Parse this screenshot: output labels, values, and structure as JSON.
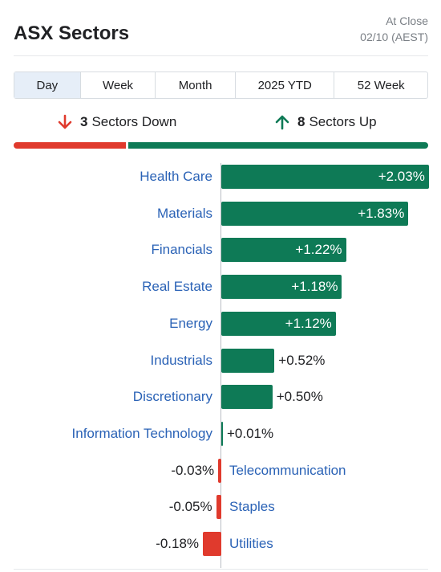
{
  "header": {
    "title": "ASX Sectors",
    "status": "At Close",
    "timestamp": "02/10 (AEST)"
  },
  "tabs": [
    {
      "label": "Day",
      "active": true
    },
    {
      "label": "Week",
      "active": false
    },
    {
      "label": "Month",
      "active": false
    },
    {
      "label": "2025 YTD",
      "active": false
    },
    {
      "label": "52 Week",
      "active": false
    }
  ],
  "summary": {
    "down_count": "3",
    "down_label": "Sectors Down",
    "up_count": "8",
    "up_label": "Sectors Up"
  },
  "colors": {
    "positive": "#0e7a56",
    "negative": "#e03a2d",
    "link": "#2a62b6",
    "active_tab": "#e6eef8"
  },
  "icons": {
    "down": "arrow-down-icon",
    "up": "arrow-up-icon"
  },
  "chart_data": {
    "type": "bar",
    "orientation": "horizontal",
    "categories": [
      "Health Care",
      "Materials",
      "Financials",
      "Real Estate",
      "Energy",
      "Industrials",
      "Discretionary",
      "Information Technology",
      "Telecommunication",
      "Staples",
      "Utilities"
    ],
    "values": [
      2.03,
      1.83,
      1.22,
      1.18,
      1.12,
      0.52,
      0.5,
      0.01,
      -0.03,
      -0.05,
      -0.18
    ],
    "value_labels": [
      "+2.03%",
      "+1.83%",
      "+1.22%",
      "+1.18%",
      "+1.12%",
      "+0.52%",
      "+0.50%",
      "+0.01%",
      "-0.03%",
      "-0.05%",
      "-0.18%"
    ]
  }
}
